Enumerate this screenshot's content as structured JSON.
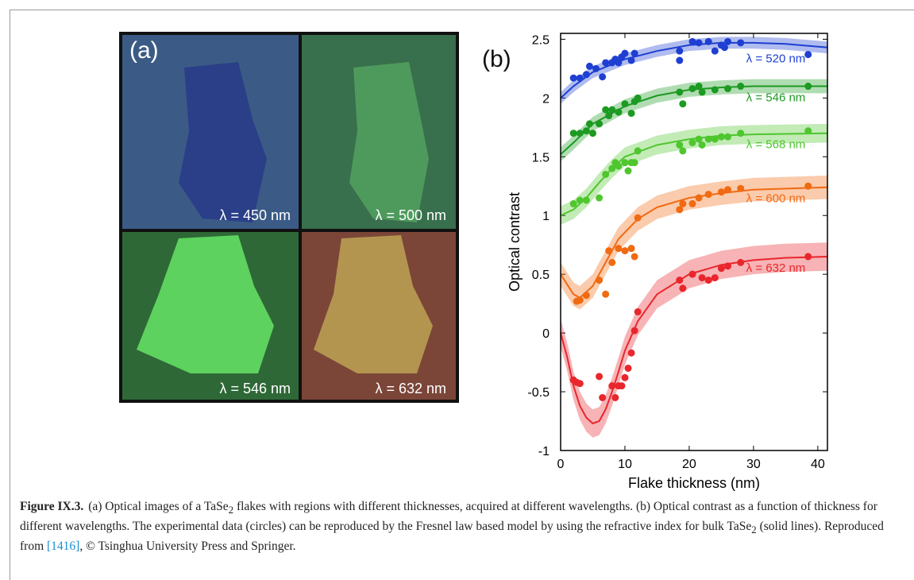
{
  "panel_a": {
    "label": "(a)",
    "images": [
      "λ = 450 nm",
      "λ = 500 nm",
      "λ = 546 nm",
      "λ = 632 nm"
    ]
  },
  "chart_data": {
    "type": "scatter",
    "panel_label": "(b)",
    "xlabel": "Flake thickness (nm)",
    "ylabel": "Optical contrast",
    "xlim": [
      0,
      41.5
    ],
    "ylim": [
      -1,
      2.55
    ],
    "xticks": [
      0,
      10,
      20,
      30,
      40
    ],
    "yticks": [
      -1,
      -0.5,
      0,
      0.5,
      1,
      1.5,
      2,
      2.5
    ],
    "series": [
      {
        "name": "λ = 520 nm",
        "color": "#1e3fd2",
        "band": 0.05,
        "x": [
          2,
          3,
          4,
          4.5,
          5.5,
          6.5,
          7,
          8,
          8.5,
          9,
          9.5,
          10,
          11,
          11.5,
          18.5,
          18.5,
          20.5,
          21.5,
          23,
          24,
          25,
          25.5,
          26,
          28,
          38.5
        ],
        "values": [
          2.17,
          2.17,
          2.2,
          2.27,
          2.25,
          2.18,
          2.3,
          2.3,
          2.33,
          2.3,
          2.35,
          2.38,
          2.32,
          2.38,
          2.4,
          2.32,
          2.48,
          2.47,
          2.48,
          2.4,
          2.45,
          2.43,
          2.48,
          2.47,
          2.37
        ],
        "fit_x": [
          0,
          2,
          5,
          10,
          15,
          20,
          25,
          30,
          35,
          41.5
        ],
        "fit_values": [
          2.0,
          2.1,
          2.22,
          2.33,
          2.4,
          2.45,
          2.47,
          2.47,
          2.46,
          2.43
        ]
      },
      {
        "name": "λ = 546 nm",
        "color": "#1c9a22",
        "band": 0.06,
        "x": [
          2,
          3,
          4,
          4.5,
          5,
          6,
          7,
          7.5,
          8,
          9,
          10,
          11,
          11.5,
          12,
          18.5,
          19,
          20.5,
          21.5,
          22,
          24,
          26,
          28,
          38.5
        ],
        "values": [
          1.7,
          1.7,
          1.72,
          1.78,
          1.7,
          1.78,
          1.9,
          1.85,
          1.9,
          1.88,
          1.95,
          1.87,
          1.97,
          2.0,
          2.05,
          1.95,
          2.08,
          2.1,
          2.05,
          2.07,
          2.08,
          2.1,
          2.1
        ],
        "fit_x": [
          0,
          2,
          5,
          10,
          15,
          20,
          25,
          30,
          35,
          41.5
        ],
        "fit_values": [
          1.52,
          1.62,
          1.78,
          1.93,
          2.02,
          2.07,
          2.09,
          2.1,
          2.1,
          2.1
        ]
      },
      {
        "name": "λ = 568 nm",
        "color": "#4fc62e",
        "band": 0.08,
        "x": [
          2,
          3,
          4,
          6,
          7,
          8,
          8.5,
          9,
          10,
          10.5,
          11,
          11.5,
          12,
          18.5,
          19,
          20.5,
          21.5,
          22,
          23,
          24,
          25,
          26,
          28,
          38.5
        ],
        "values": [
          1.1,
          1.13,
          1.13,
          1.15,
          1.35,
          1.4,
          1.45,
          1.42,
          1.45,
          1.38,
          1.45,
          1.45,
          1.55,
          1.6,
          1.55,
          1.62,
          1.65,
          1.6,
          1.65,
          1.65,
          1.67,
          1.67,
          1.7,
          1.72
        ],
        "fit_x": [
          0,
          2,
          4,
          6,
          8,
          10,
          15,
          20,
          25,
          30,
          41.5
        ],
        "fit_values": [
          1.0,
          1.05,
          1.15,
          1.28,
          1.4,
          1.5,
          1.6,
          1.65,
          1.68,
          1.69,
          1.7
        ]
      },
      {
        "name": "λ = 600 nm",
        "color": "#f06a12",
        "band": 0.1,
        "x": [
          2.5,
          3,
          4,
          6,
          7,
          7.5,
          8,
          9,
          10,
          11,
          11.5,
          12,
          18.5,
          19,
          20.5,
          21.5,
          23,
          25,
          26,
          28,
          38.5
        ],
        "values": [
          0.27,
          0.28,
          0.32,
          0.45,
          0.33,
          0.7,
          0.6,
          0.72,
          0.7,
          0.72,
          0.65,
          0.98,
          1.05,
          1.1,
          1.1,
          1.15,
          1.18,
          1.2,
          1.22,
          1.23,
          1.25
        ],
        "fit_x": [
          0,
          2,
          3,
          5,
          7,
          9,
          12,
          15,
          20,
          25,
          30,
          41.5
        ],
        "fit_values": [
          0.5,
          0.33,
          0.3,
          0.4,
          0.6,
          0.8,
          0.97,
          1.07,
          1.15,
          1.19,
          1.22,
          1.24
        ]
      },
      {
        "name": "λ = 632 nm",
        "color": "#e8262c",
        "band": 0.12,
        "x": [
          2,
          2.5,
          3,
          6,
          6.5,
          8,
          8.5,
          9,
          9.5,
          10,
          10.5,
          11,
          11.5,
          12,
          18.5,
          19,
          20.5,
          22,
          23,
          24,
          25,
          26,
          28,
          38.5
        ],
        "values": [
          -0.4,
          -0.42,
          -0.43,
          -0.37,
          -0.55,
          -0.45,
          -0.55,
          -0.45,
          -0.45,
          -0.38,
          -0.3,
          -0.17,
          0.02,
          0.18,
          0.45,
          0.38,
          0.5,
          0.47,
          0.45,
          0.47,
          0.55,
          0.57,
          0.6,
          0.65
        ],
        "fit_x": [
          0,
          1,
          2,
          3,
          4,
          5,
          6,
          7,
          8,
          9,
          10,
          12,
          15,
          20,
          25,
          30,
          35,
          41.5
        ],
        "fit_values": [
          0,
          -0.2,
          -0.45,
          -0.62,
          -0.72,
          -0.77,
          -0.75,
          -0.65,
          -0.5,
          -0.33,
          -0.15,
          0.1,
          0.33,
          0.5,
          0.58,
          0.62,
          0.64,
          0.65
        ]
      }
    ]
  },
  "caption": {
    "label": "Figure IX.3.",
    "parts": [
      "(a) Optical images of a TaSe",
      "2",
      " flakes with regions with different thicknesses, acquired at different wavelengths. (b) Optical contrast as a function of thickness for different wavelengths. The experimental data (circles) can be reproduced by the Fresnel law based model by using the refractive index for bulk TaSe",
      "2",
      " (solid lines). Reproduced from ",
      "[1416]",
      ", © Tsinghua University Press and Springer."
    ]
  }
}
